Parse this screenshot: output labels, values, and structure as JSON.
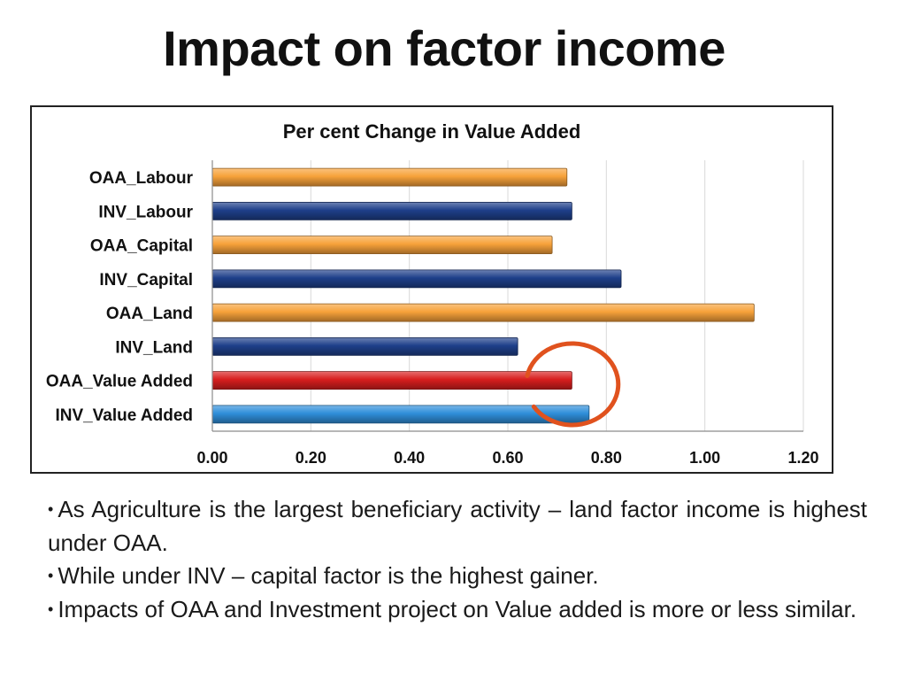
{
  "slide": {
    "title": "Impact on factor income"
  },
  "colors": {
    "oaa": "#F7A23A",
    "inv": "#1E3F8A",
    "oaa_value_added": "#D81E1E",
    "inv_value_added": "#2F8FDA",
    "highlight_circle": "#E0521E",
    "gridline": "#D9D9D9"
  },
  "chart_data": {
    "type": "bar",
    "orientation": "horizontal",
    "title": "Per cent Change in Value Added",
    "categories": [
      "OAA_Labour",
      "INV_Labour",
      "OAA_Capital",
      "INV_Capital",
      "OAA_Land",
      "INV_Land",
      "OAA_Value Added",
      "INV_Value Added"
    ],
    "values": [
      0.72,
      0.73,
      0.69,
      0.83,
      1.1,
      0.62,
      0.73,
      0.765
    ],
    "bar_colors": [
      "oaa",
      "inv",
      "oaa",
      "inv",
      "oaa",
      "inv",
      "oaa_value_added",
      "inv_value_added"
    ],
    "xlim": [
      0,
      1.2
    ],
    "xticks": [
      "0.00",
      "0.20",
      "0.40",
      "0.60",
      "0.80",
      "1.00",
      "1.20"
    ],
    "xlabel": "",
    "ylabel": "",
    "grid": true,
    "annotation": {
      "type": "circle",
      "target": "OAA_Value Added"
    }
  },
  "bullets": [
    "As Agriculture is the largest beneficiary activity – land factor income is highest under OAA.",
    "While under INV – capital factor is the highest gainer.",
    "Impacts of OAA and Investment project on Value added is more or less similar."
  ],
  "bullet_symbol": "•"
}
